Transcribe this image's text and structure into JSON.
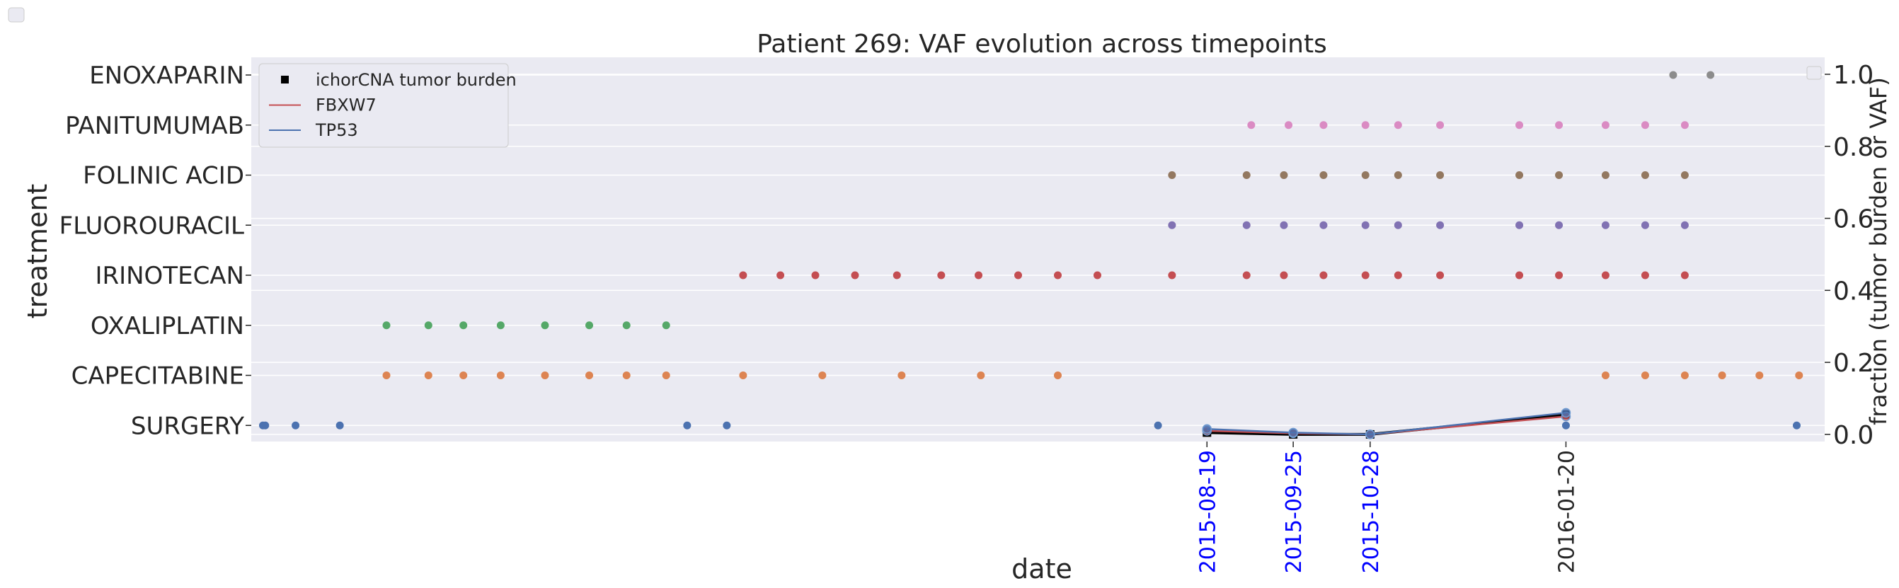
{
  "chart_data": {
    "type": "scatter",
    "title": "Patient 269: VAF evolution across timepoints",
    "xlabel": "date",
    "ylabel": "treatment",
    "y2label": "fraction (tumor burden or VAF)",
    "x_range": [
      "2014-07-05",
      "2016-05-10"
    ],
    "y2lim": [
      -0.01,
      1.0
    ],
    "y2ticks": [
      "0.0",
      "0.2",
      "0.4",
      "0.6",
      "0.8",
      "1.0"
    ],
    "grid": true,
    "legend_position": "top-left",
    "background_color": "#eaeaf2",
    "x_ticks": [
      {
        "label": "2015-08-19",
        "date": "2015-08-19",
        "color": "#0000ff"
      },
      {
        "label": "2015-09-25",
        "date": "2015-09-25",
        "color": "#0000ff"
      },
      {
        "label": "2015-10-28",
        "date": "2015-10-28",
        "color": "#0000ff"
      },
      {
        "label": "2016-01-20",
        "date": "2016-01-20",
        "color": "#262626"
      }
    ],
    "treatments": [
      {
        "name": "SURGERY",
        "color": "#4c72b0",
        "dates": [
          "2014-07-10",
          "2014-07-11",
          "2014-07-24",
          "2014-08-12",
          "2015-01-08",
          "2015-01-25",
          "2015-07-29",
          "2016-01-20",
          "2016-04-28"
        ]
      },
      {
        "name": "CAPECITABINE",
        "color": "#dd8452",
        "dates": [
          "2014-09-01",
          "2014-09-19",
          "2014-10-04",
          "2014-10-20",
          "2014-11-08",
          "2014-11-27",
          "2014-12-13",
          "2014-12-30",
          "2015-02-01",
          "2015-03-07",
          "2015-04-10",
          "2015-05-14",
          "2015-06-16",
          "2016-02-06",
          "2016-02-23",
          "2016-03-11",
          "2016-03-27",
          "2016-04-12",
          "2016-04-29"
        ]
      },
      {
        "name": "OXALIPLATIN",
        "color": "#55a868",
        "dates": [
          "2014-09-01",
          "2014-09-19",
          "2014-10-04",
          "2014-10-20",
          "2014-11-08",
          "2014-11-27",
          "2014-12-13",
          "2014-12-30"
        ]
      },
      {
        "name": "IRINOTECAN",
        "color": "#c44e52",
        "dates": [
          "2015-02-01",
          "2015-02-17",
          "2015-03-04",
          "2015-03-21",
          "2015-04-08",
          "2015-04-27",
          "2015-05-13",
          "2015-05-30",
          "2015-06-16",
          "2015-07-03",
          "2015-08-04",
          "2015-09-05",
          "2015-09-21",
          "2015-10-08",
          "2015-10-26",
          "2015-11-09",
          "2015-11-27",
          "2015-12-31",
          "2016-01-17",
          "2016-02-06",
          "2016-02-23",
          "2016-03-11"
        ]
      },
      {
        "name": "FLUOROURACIL",
        "color": "#8172b3",
        "dates": [
          "2015-08-04",
          "2015-09-05",
          "2015-09-21",
          "2015-10-08",
          "2015-10-26",
          "2015-11-09",
          "2015-11-27",
          "2015-12-31",
          "2016-01-17",
          "2016-02-06",
          "2016-02-23",
          "2016-03-11"
        ]
      },
      {
        "name": "FOLINIC ACID",
        "color": "#937860",
        "dates": [
          "2015-08-04",
          "2015-09-05",
          "2015-09-21",
          "2015-10-08",
          "2015-10-26",
          "2015-11-09",
          "2015-11-27",
          "2015-12-31",
          "2016-01-17",
          "2016-02-06",
          "2016-02-23",
          "2016-03-11"
        ]
      },
      {
        "name": "PANITUMUMAB",
        "color": "#da8bc3",
        "dates": [
          "2015-09-07",
          "2015-09-23",
          "2015-10-08",
          "2015-10-26",
          "2015-11-09",
          "2015-11-27",
          "2015-12-31",
          "2016-01-17",
          "2016-02-06",
          "2016-02-23",
          "2016-03-11"
        ]
      },
      {
        "name": "ENOXAPARIN",
        "color": "#8c8c8c",
        "dates": [
          "2016-03-06",
          "2016-03-22"
        ]
      }
    ],
    "series": [
      {
        "name": "ichorCNA tumor burden",
        "color": "#000000",
        "marker": "square",
        "points": [
          {
            "x": "2015-08-19",
            "y": 0.005
          },
          {
            "x": "2015-09-25",
            "y": 0.0
          },
          {
            "x": "2015-10-28",
            "y": 0.0
          },
          {
            "x": "2016-01-20",
            "y": 0.055
          }
        ]
      },
      {
        "name": "FBXW7",
        "color": "#c44e52",
        "marker": "circle",
        "points": [
          {
            "x": "2015-08-19",
            "y": 0.01
          },
          {
            "x": "2015-09-25",
            "y": 0.003
          },
          {
            "x": "2015-10-28",
            "y": 0.0
          },
          {
            "x": "2016-01-20",
            "y": 0.05
          }
        ]
      },
      {
        "name": "TP53",
        "color": "#4c72b0",
        "marker": "circle",
        "points": [
          {
            "x": "2015-08-19",
            "y": 0.015
          },
          {
            "x": "2015-09-25",
            "y": 0.005
          },
          {
            "x": "2015-10-28",
            "y": 0.0
          },
          {
            "x": "2016-01-20",
            "y": 0.06
          }
        ]
      }
    ]
  }
}
